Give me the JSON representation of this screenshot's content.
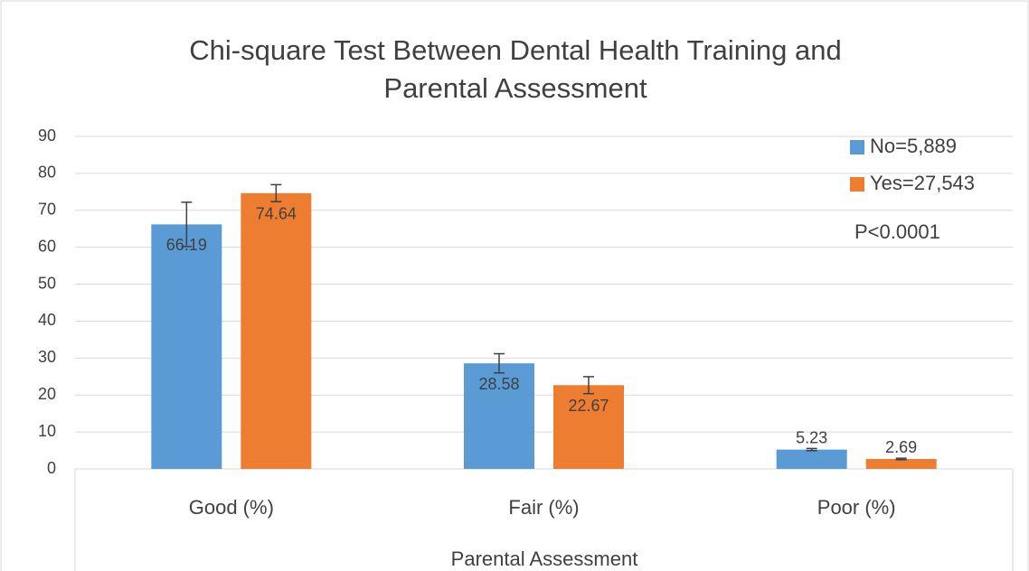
{
  "chart_data": {
    "type": "bar",
    "title": "Chi-square Test Between Dental Health Training and",
    "subtitle": "Parental Assessment",
    "x_label": "Parental Assessment",
    "categories": [
      "Good (%)",
      "Fair (%)",
      "Poor (%)"
    ],
    "series": [
      {
        "name": "No=5,889",
        "color": "#5b9bd5",
        "values": [
          66.19,
          28.58,
          5.23
        ],
        "errors": [
          6,
          2.6,
          0.3
        ]
      },
      {
        "name": "Yes=27,543",
        "color": "#ed7d31",
        "values": [
          74.64,
          22.67,
          2.69
        ],
        "errors": [
          2.3,
          2.3,
          0.2
        ]
      }
    ],
    "annotations": [
      "P<0.0001"
    ],
    "ylim": [
      0,
      90
    ],
    "yticks": [
      0,
      10,
      20,
      30,
      40,
      50,
      60,
      70,
      80,
      90
    ],
    "grid": true,
    "legend": "upper right"
  }
}
